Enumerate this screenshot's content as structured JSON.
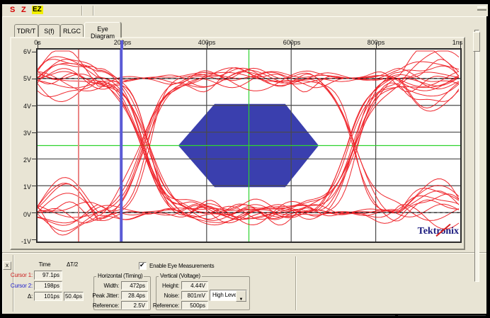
{
  "toolbar": {
    "logo_s": "S",
    "logo_z": "Z",
    "logo_ez": "EZ"
  },
  "tabs": [
    {
      "label": "TDR/T",
      "active": false
    },
    {
      "label": "S(f)",
      "active": false
    },
    {
      "label": "RLGC",
      "active": false
    },
    {
      "label": "Eye Diagram",
      "active": true
    }
  ],
  "plot": {
    "logo": "Tektronix"
  },
  "chart_data": {
    "type": "eye_diagram",
    "x_axis": {
      "ticks": [
        "0s",
        "200ps",
        "400ps",
        "600ps",
        "800ps",
        "1ns"
      ],
      "tick_ps": [
        0,
        200,
        400,
        600,
        800,
        1000
      ],
      "range_ps": [
        0,
        1000
      ]
    },
    "y_axis": {
      "ticks": [
        "6V",
        "5V",
        "4V",
        "3V",
        "2V",
        "1V",
        "0V",
        "-1V"
      ],
      "tick_V": [
        6,
        5,
        4,
        3,
        2,
        1,
        0,
        -1
      ],
      "range_V": [
        -1,
        6
      ]
    },
    "high_level_V": 5.0,
    "low_level_V": 0.0,
    "crossing_times_ps": [
      255,
      745
    ],
    "bit_period_ps": 490,
    "eye_width_ps": 472,
    "eye_height_V": 4.44,
    "peak_jitter_ps": 28.4,
    "noise_mV": 801,
    "h_reference_V": 2.5,
    "v_reference_ps": 500,
    "cursor1_ps": 97.1,
    "cursor2_ps": 198,
    "mask_polygon_ps_V": [
      [
        333,
        2.5
      ],
      [
        419,
        4.05
      ],
      [
        586,
        4.05
      ],
      [
        665,
        2.5
      ],
      [
        586,
        0.95
      ],
      [
        419,
        0.95
      ]
    ],
    "grid_on": true,
    "colors": {
      "trace": "#ee1118",
      "mask": "#3a3fae",
      "grid": "#4a4a4a",
      "crosshair": "#2fd32f",
      "cursor1": "#ea8484",
      "cursor2": "#5b5bd6",
      "level_line": "#1a1a1a",
      "logo": "#1a1a7e"
    },
    "n_traces": 27,
    "seed": 9
  },
  "measurements": {
    "close_label": "x",
    "headers": {
      "time": "Time",
      "dt2": "ΔT/2"
    },
    "cursor1": {
      "label": "Cursor 1:",
      "value": "97.1ps"
    },
    "cursor2": {
      "label": "Cursor 2:",
      "value": "198ps"
    },
    "delta": {
      "label": "Δ:",
      "value": "101ps",
      "value2": "50.4ps"
    },
    "enable": {
      "label": "Enable Eye Measurements",
      "checked": true,
      "check_glyph": "✔"
    },
    "horizontal": {
      "title": "Horizontal (Timing)",
      "rows": [
        {
          "label": "Width:",
          "value": "472ps"
        },
        {
          "label": "Peak Jitter:",
          "value": "28.4ps"
        },
        {
          "label": "Reference:",
          "value": "2.5V"
        }
      ]
    },
    "vertical": {
      "title": "Vertical (Voltage)",
      "rows": [
        {
          "label": "Height:",
          "value": "4.44V"
        },
        {
          "label": "Noise:",
          "value": "801mV"
        },
        {
          "label": "Reference:",
          "value": "500ps"
        }
      ],
      "dropdown": {
        "value": "High Level",
        "arrow": "▼"
      }
    }
  }
}
